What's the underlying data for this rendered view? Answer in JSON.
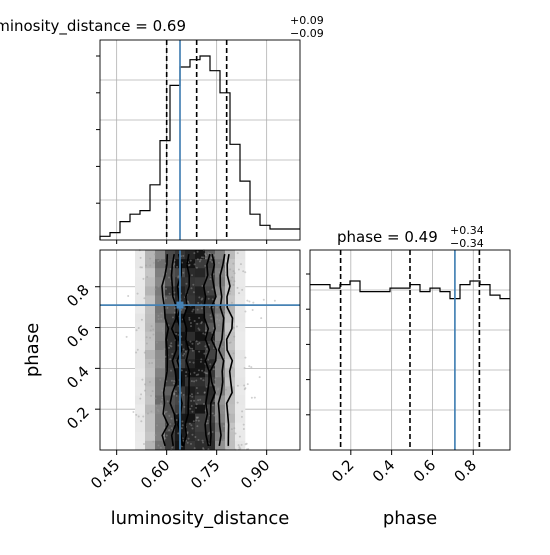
{
  "chart_data": {
    "type": "corner",
    "parameters": [
      "luminosity_distance",
      "phase"
    ],
    "truth": {
      "luminosity_distance": 0.64,
      "phase": 0.71
    },
    "titles": [
      {
        "name": "luminosity_distance",
        "value": "0.69",
        "plus": "+0.09",
        "minus": "−0.09"
      },
      {
        "name": "phase",
        "value": "0.49",
        "plus": "+0.34",
        "minus": "−0.34"
      }
    ],
    "axes": {
      "luminosity_distance": {
        "label": "luminosity_distance",
        "range": [
          0.4,
          1.0
        ],
        "ticks": [
          0.45,
          0.6,
          0.75,
          0.9
        ],
        "tick_labels": [
          "0.45",
          "0.60",
          "0.75",
          "0.90"
        ]
      },
      "phase": {
        "label": "phase",
        "range": [
          0.0,
          0.98
        ],
        "ticks": [
          0.2,
          0.4,
          0.6,
          0.8
        ],
        "tick_labels": [
          "0.2",
          "0.4",
          "0.6",
          "0.8"
        ]
      }
    },
    "hist_luminosity_distance": {
      "bin_start": 0.4,
      "bin_width": 0.03,
      "counts": [
        1,
        2,
        5,
        7,
        8,
        15,
        27,
        42,
        47,
        49,
        50,
        46,
        40,
        26,
        16,
        7,
        4,
        3,
        3,
        3
      ],
      "quantiles": [
        0.6,
        0.69,
        0.78
      ]
    },
    "hist_phase": {
      "bin_start": 0.0,
      "bin_width": 0.049,
      "counts": [
        47,
        47,
        46,
        47,
        48,
        45,
        45,
        45,
        46,
        46,
        47,
        45,
        46,
        45,
        43,
        47,
        48,
        47,
        44,
        43
      ],
      "quantiles": [
        0.15,
        0.49,
        0.83
      ]
    },
    "density_2d": {
      "x_bins": [
        0.52,
        0.55,
        0.58,
        0.61,
        0.64,
        0.67,
        0.7,
        0.73,
        0.76,
        0.79,
        0.82
      ],
      "column_intensity": [
        0.1,
        0.28,
        0.55,
        0.78,
        0.92,
        1.0,
        0.95,
        0.8,
        0.52,
        0.28,
        0.1
      ],
      "contour_levels": [
        "0.5 sigma",
        "1 sigma",
        "1.5 sigma",
        "2 sigma"
      ]
    }
  }
}
